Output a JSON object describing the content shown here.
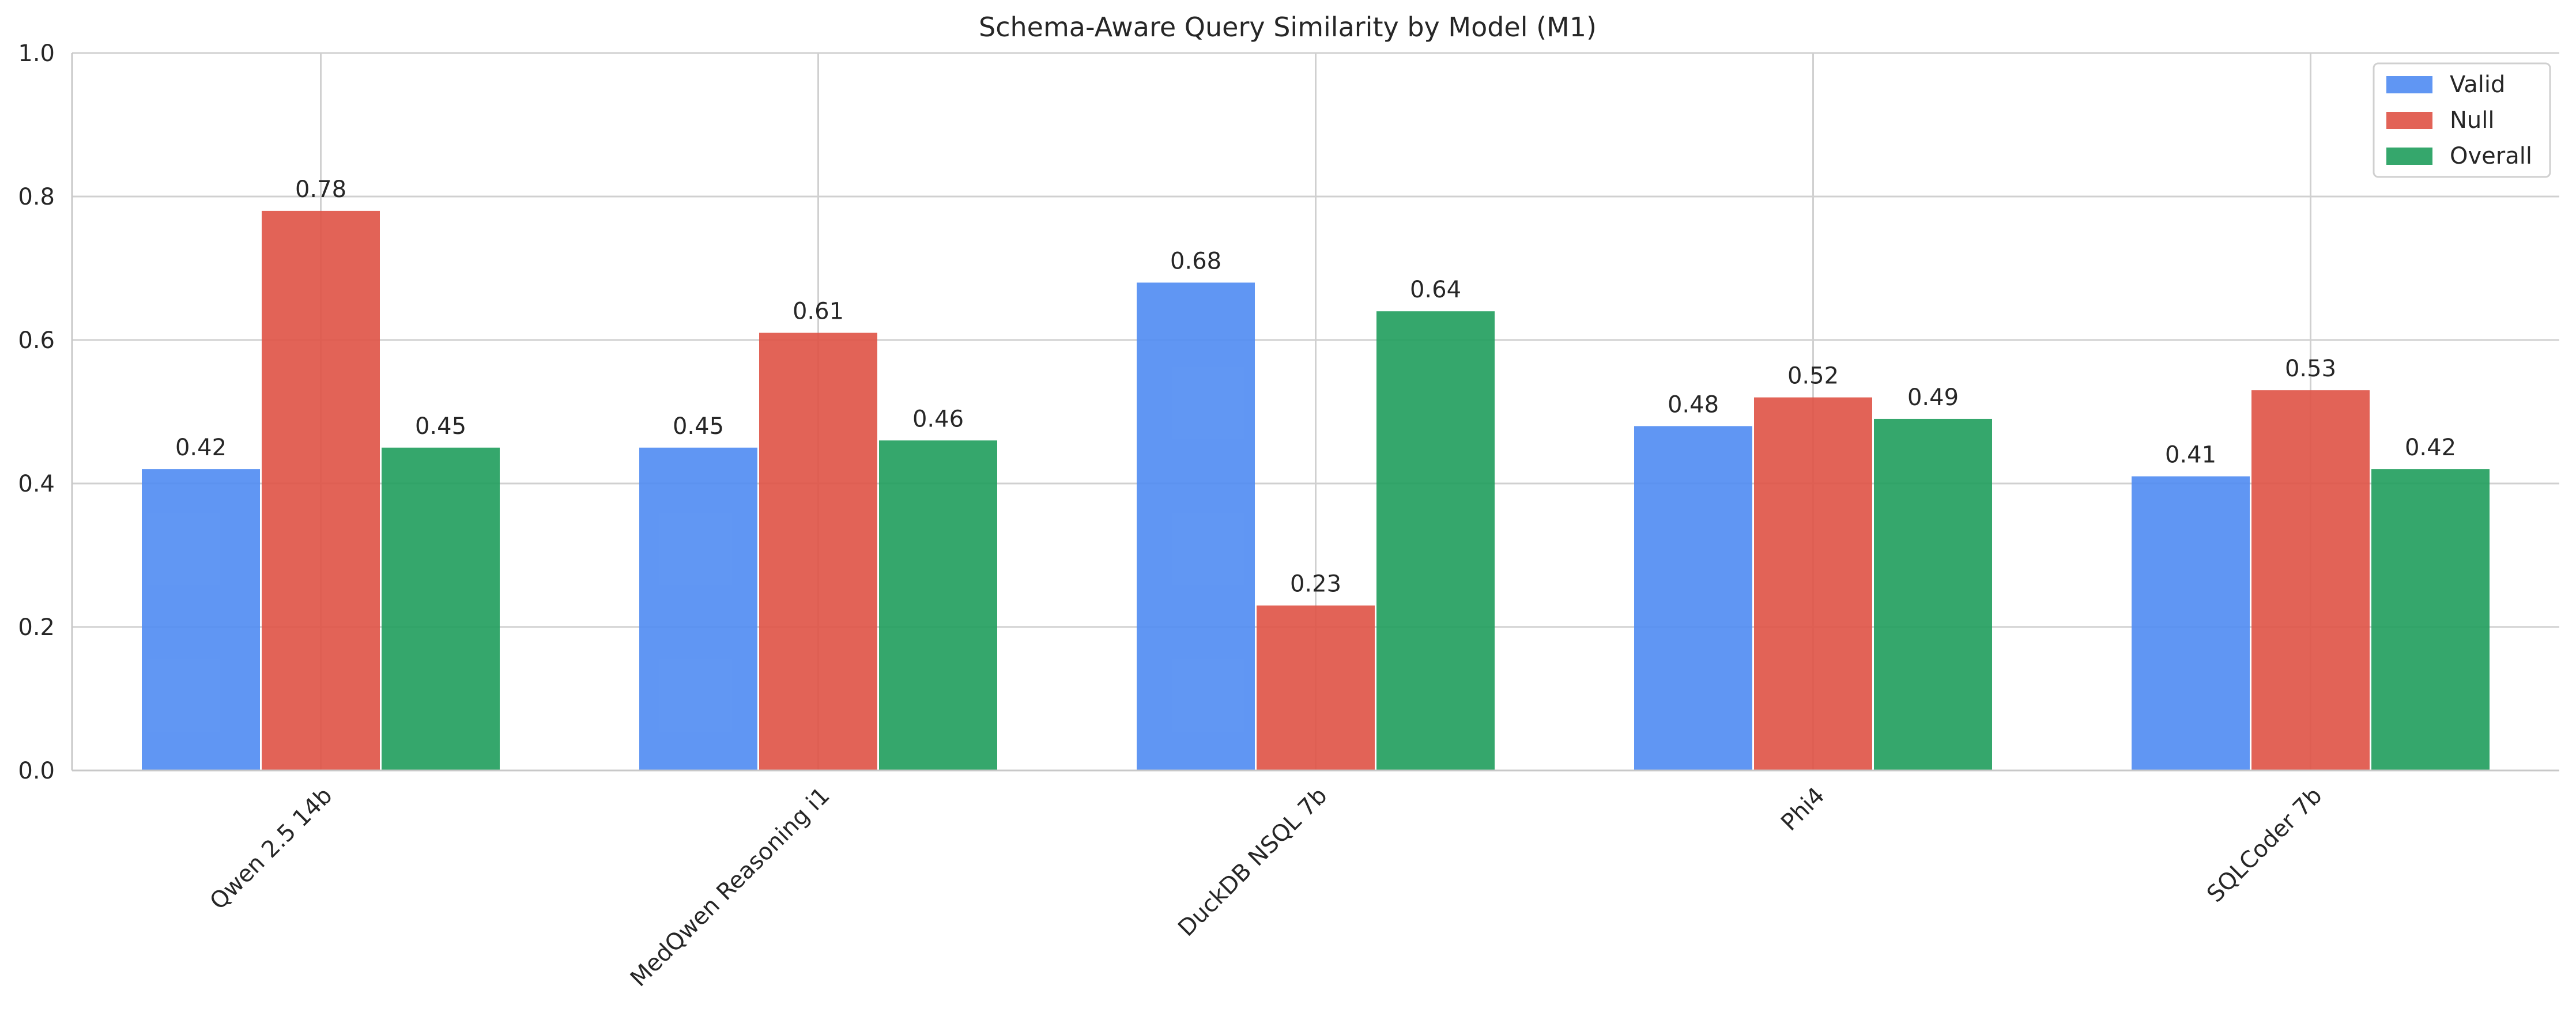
{
  "chart_data": {
    "type": "bar",
    "title": "Schema-Aware Query Similarity by Model (M1)",
    "xlabel": "",
    "ylabel": "",
    "ylim": [
      0,
      1.0
    ],
    "yticks": [
      "0.0",
      "0.2",
      "0.4",
      "0.6",
      "0.8",
      "1.0"
    ],
    "categories": [
      "Qwen 2.5 14b",
      "MedQwen Reasoning i1",
      "DuckDB NSQL 7b",
      "Phi4",
      "SQLCoder 7b"
    ],
    "series": [
      {
        "name": "Valid",
        "color": "#4F8BF2",
        "values": [
          0.42,
          0.45,
          0.68,
          0.48,
          0.41
        ],
        "labels": [
          "0.42",
          "0.45",
          "0.68",
          "0.48",
          "0.41"
        ]
      },
      {
        "name": "Null",
        "color": "#DF5245",
        "values": [
          0.78,
          0.61,
          0.23,
          0.52,
          0.53
        ],
        "labels": [
          "0.78",
          "0.61",
          "0.23",
          "0.52",
          "0.53"
        ]
      },
      {
        "name": "Overall",
        "color": "#1F9D5C",
        "values": [
          0.45,
          0.46,
          0.64,
          0.49,
          0.42
        ],
        "labels": [
          "0.45",
          "0.46",
          "0.64",
          "0.49",
          "0.42"
        ]
      }
    ],
    "grid": true,
    "legend_position": "top-right"
  }
}
